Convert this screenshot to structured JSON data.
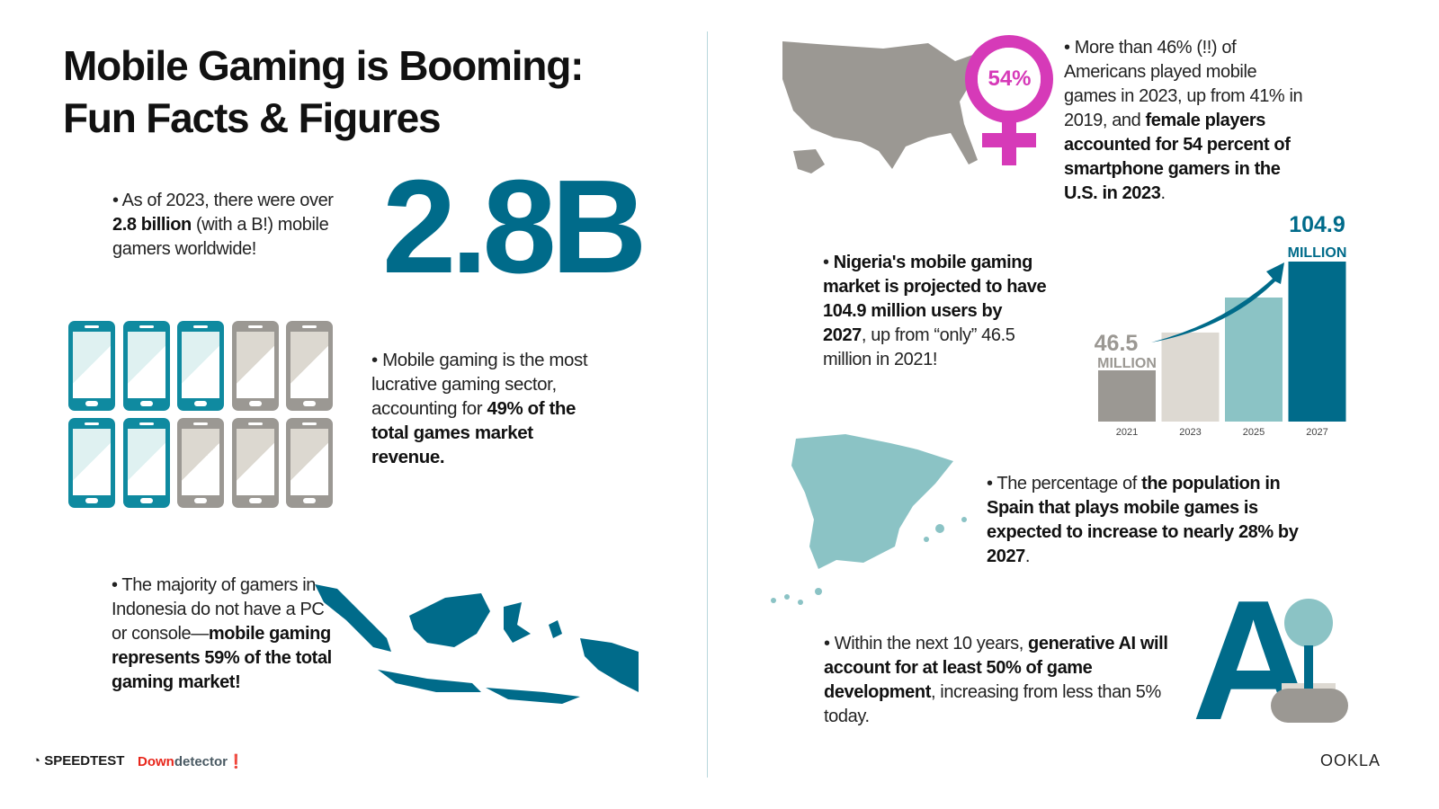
{
  "title_line1": "Mobile Gaming is Booming:",
  "title_line2": "Fun Facts & Figures",
  "big_number": "2.8B",
  "facts": {
    "gamers": [
      {
        "t": "• As of 2023, there were over "
      },
      {
        "t": "2.8 billion",
        "b": true
      },
      {
        "t": " (with a B!) mobile gamers worldwide!"
      }
    ],
    "revenue": [
      {
        "t": "• Mobile gaming is the most lucrative gaming sector, accounting for "
      },
      {
        "t": "49% of the total games market revenue.",
        "b": true
      }
    ],
    "indonesia": [
      {
        "t": "• The majority of gamers in Indonesia do not have a PC or console—"
      },
      {
        "t": "mobile gaming represents 59% of the total gaming market!",
        "b": true
      }
    ],
    "us": [
      {
        "t": "• More than 46% (!!) of Americans played mobile games in 2023, up from 41% in 2019, and "
      },
      {
        "t": "female players accounted for 54 percent of smartphone gamers in the U.S. in 2023",
        "b": true
      },
      {
        "t": "."
      }
    ],
    "nigeria": [
      {
        "t": "• "
      },
      {
        "t": "Nigeria's mobile gaming market is projected to have 104.9 million users by 2027",
        "b": true
      },
      {
        "t": ", up from “only” 46.5 million in 2021!"
      }
    ],
    "spain": [
      {
        "t": "• The percentage of "
      },
      {
        "t": "the population in Spain that plays mobile games is expected to increase to nearly 28% by 2027",
        "b": true
      },
      {
        "t": "."
      }
    ],
    "ai": [
      {
        "t": "• Within the next 10 years, "
      },
      {
        "t": "generative AI will account for at least 50% of game development",
        "b": true
      },
      {
        "t": ", increasing from less than 5% today."
      }
    ]
  },
  "phones": {
    "total": 10,
    "highlighted": 5,
    "highlight_color": "#0f8aa0",
    "other_color": "#9b9893"
  },
  "female_badge": "54%",
  "ai_letter": "A",
  "chart_data": {
    "type": "bar",
    "categories": [
      "2021",
      "2023",
      "2025",
      "2027"
    ],
    "values": [
      46.5,
      66.8,
      85.6,
      104.9
    ],
    "colors": [
      "#9b9893",
      "#ddd9d2",
      "#8bc3c5",
      "#006b8a"
    ],
    "data_labels": [
      {
        "value": "46.5",
        "unit": "MILLION"
      },
      null,
      null,
      {
        "value": "104.9",
        "unit": "MILLION"
      }
    ],
    "grid": false
  },
  "colors": {
    "accent": "#006b8a",
    "teal_light": "#8bc3c5",
    "magenta": "#d63ab8",
    "gray": "#9b9893"
  },
  "footer": {
    "speedtest": "SPEEDTEST",
    "downdetector_a": "Down",
    "downdetector_b": "detector",
    "ookla": "OOKLA"
  }
}
